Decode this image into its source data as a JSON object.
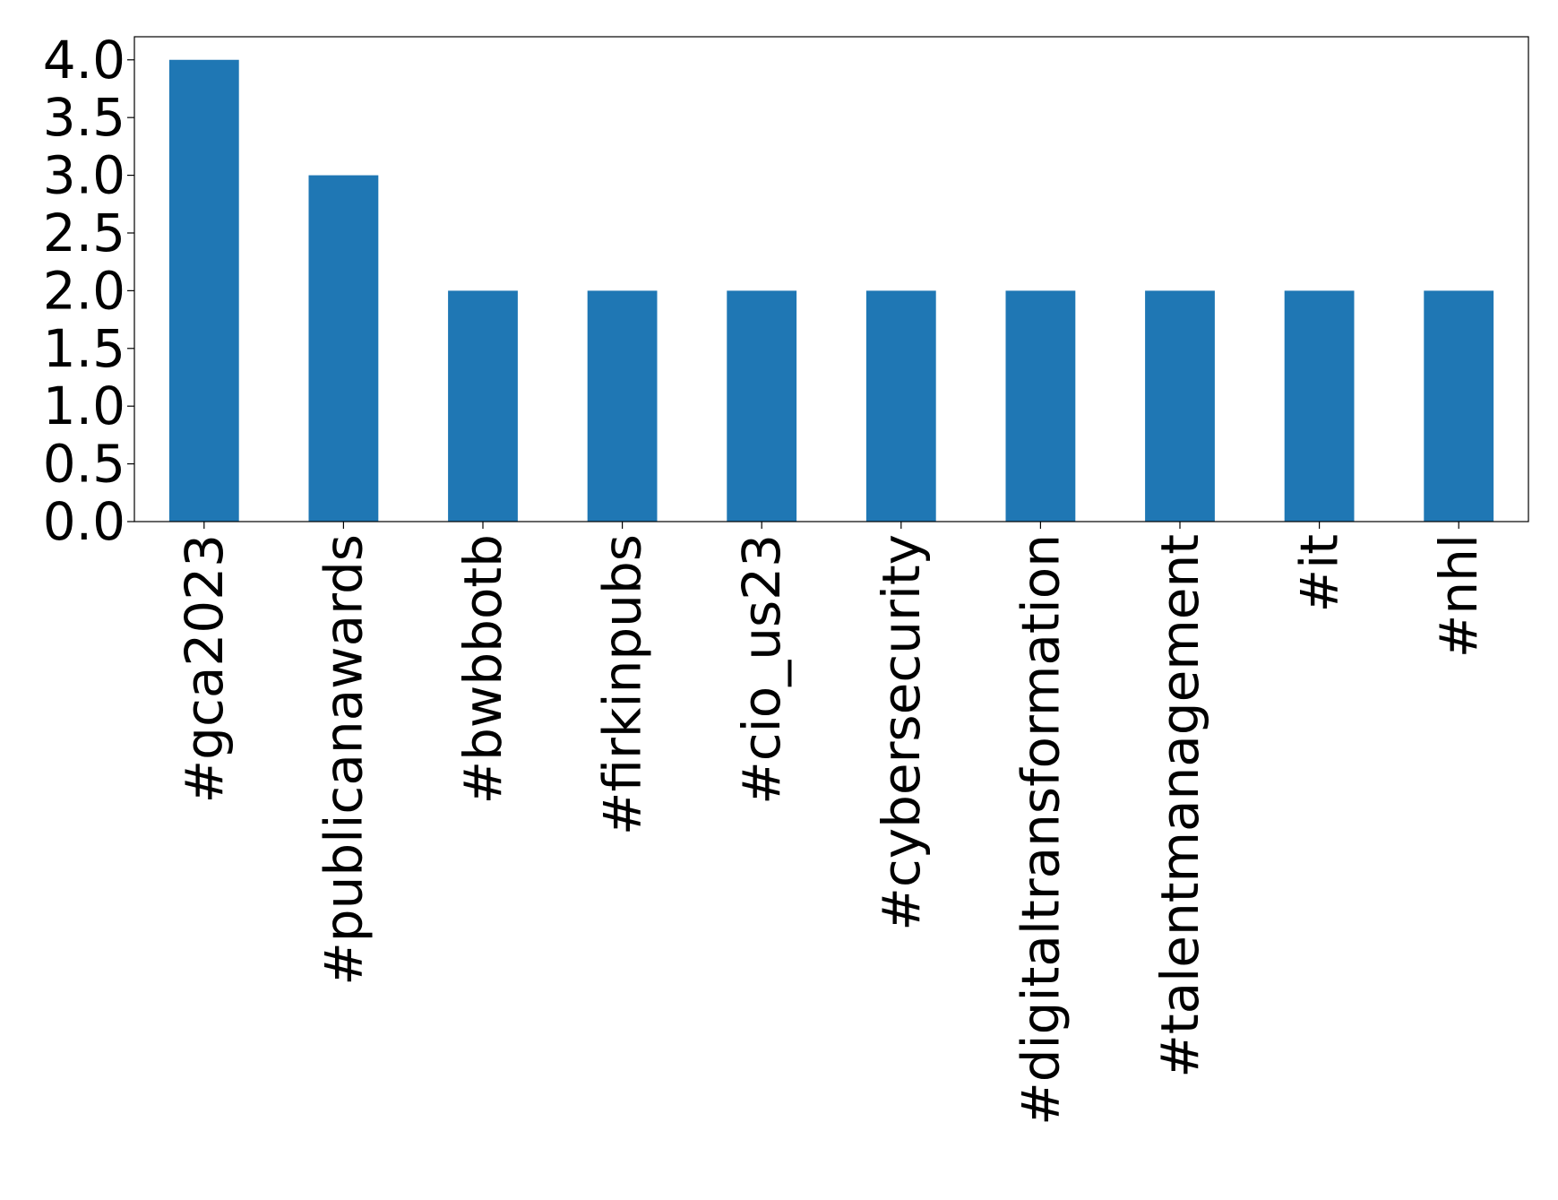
{
  "chart_data": {
    "type": "bar",
    "title": "",
    "xlabel": "",
    "ylabel": "",
    "categories": [
      "#gca2023",
      "#publicanawards",
      "#bwbbotb",
      "#firkinpubs",
      "#cio_us23",
      "#cybersecurity",
      "#digitaltransformation",
      "#talentmanagement",
      "#it",
      "#nhl"
    ],
    "values": [
      4,
      3,
      2,
      2,
      2,
      2,
      2,
      2,
      2,
      2
    ],
    "ylim": [
      0,
      4.2
    ],
    "yticks": [
      "0.0",
      "0.5",
      "1.0",
      "1.5",
      "2.0",
      "2.5",
      "3.0",
      "3.5",
      "4.0"
    ],
    "bar_color": "#1f77b4",
    "grid": false,
    "legend": "none",
    "x_tick_rotation": "vertical"
  }
}
